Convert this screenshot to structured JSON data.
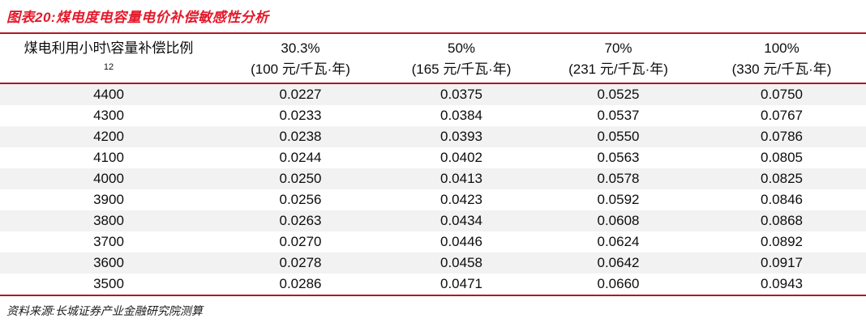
{
  "figure": {
    "title": "图表20:煤电度电容量电价补偿敏感性分析",
    "source": "资料来源:长城证券产业金融研究院测算"
  },
  "table": {
    "corner": {
      "label": "煤电利用小时\\容量补偿比例",
      "footnote": "12"
    },
    "columns": [
      {
        "pct": "30.3%",
        "unit": "(100 元/千瓦·年)"
      },
      {
        "pct": "50%",
        "unit": "(165 元/千瓦·年)"
      },
      {
        "pct": "70%",
        "unit": "(231 元/千瓦·年)"
      },
      {
        "pct": "100%",
        "unit": "(330 元/千瓦·年)"
      }
    ],
    "rows": [
      {
        "hours": "4400",
        "values": [
          "0.0227",
          "0.0375",
          "0.0525",
          "0.0750"
        ]
      },
      {
        "hours": "4300",
        "values": [
          "0.0233",
          "0.0384",
          "0.0537",
          "0.0767"
        ]
      },
      {
        "hours": "4200",
        "values": [
          "0.0238",
          "0.0393",
          "0.0550",
          "0.0786"
        ]
      },
      {
        "hours": "4100",
        "values": [
          "0.0244",
          "0.0402",
          "0.0563",
          "0.0805"
        ]
      },
      {
        "hours": "4000",
        "values": [
          "0.0250",
          "0.0413",
          "0.0578",
          "0.0825"
        ]
      },
      {
        "hours": "3900",
        "values": [
          "0.0256",
          "0.0423",
          "0.0592",
          "0.0846"
        ]
      },
      {
        "hours": "3800",
        "values": [
          "0.0263",
          "0.0434",
          "0.0608",
          "0.0868"
        ]
      },
      {
        "hours": "3700",
        "values": [
          "0.0270",
          "0.0446",
          "0.0624",
          "0.0892"
        ]
      },
      {
        "hours": "3600",
        "values": [
          "0.0278",
          "0.0458",
          "0.0642",
          "0.0917"
        ]
      },
      {
        "hours": "3500",
        "values": [
          "0.0286",
          "0.0471",
          "0.0660",
          "0.0943"
        ]
      }
    ]
  },
  "colors": {
    "title_red": "#e4192b",
    "rule_red": "#b01828",
    "row_stripe": "#f2f2f2"
  }
}
